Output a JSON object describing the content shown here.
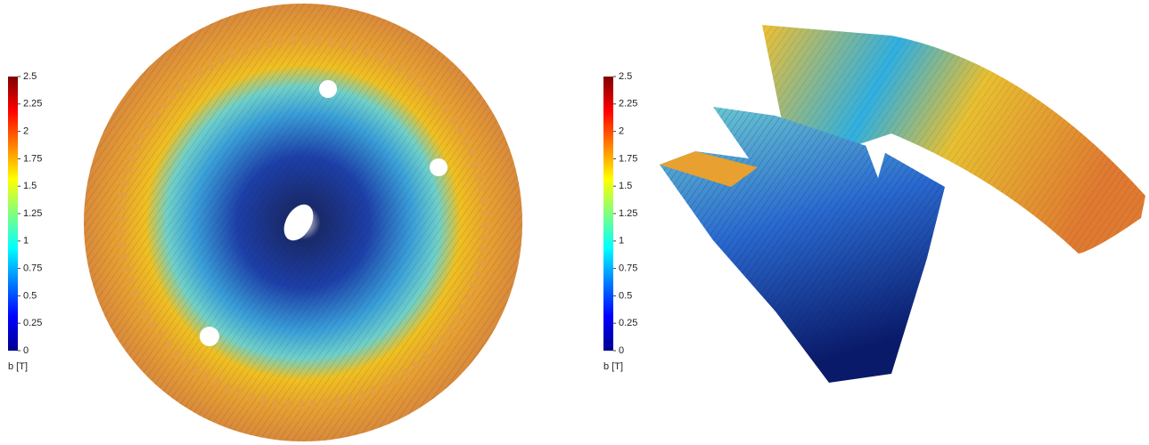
{
  "panels": [
    {
      "colorbar": {
        "label": "b [T]",
        "range": [
          0,
          2.5
        ],
        "ticks": [
          0,
          0.25,
          0.5,
          0.75,
          1,
          1.25,
          1.5,
          1.75,
          2,
          2.25,
          2.5
        ]
      }
    },
    {
      "colorbar": {
        "label": "b [T]",
        "range": [
          0,
          2.5
        ],
        "ticks": [
          0,
          0.25,
          0.5,
          0.75,
          1,
          1.25,
          1.5,
          1.75,
          2,
          2.25,
          2.5
        ]
      }
    }
  ]
}
